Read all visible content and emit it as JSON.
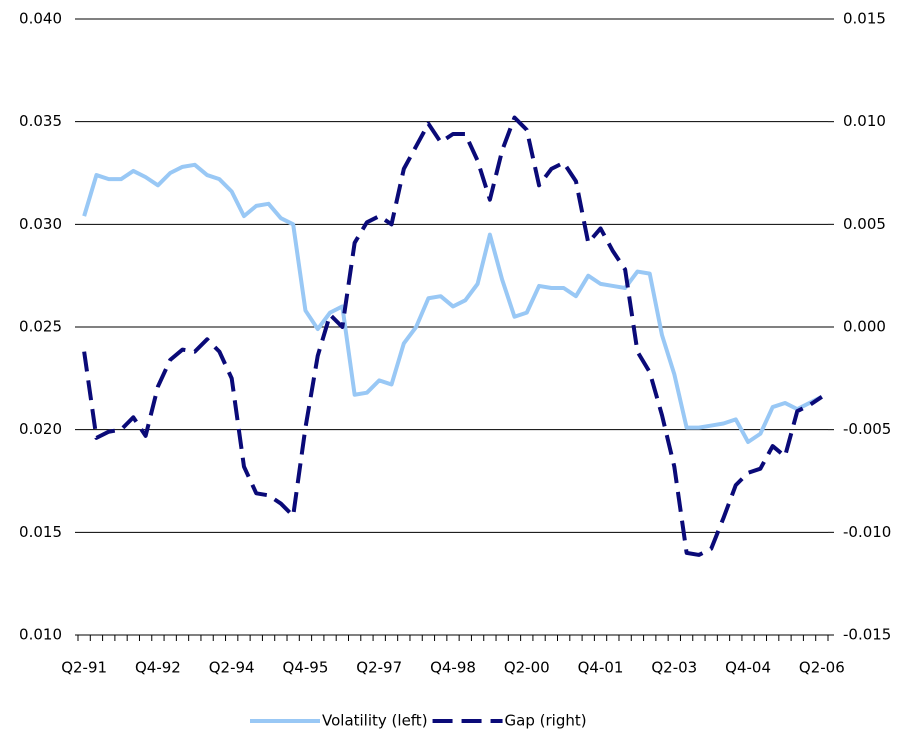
{
  "chart_data": {
    "type": "line",
    "categories": [
      "Q2-91",
      null,
      null,
      null,
      null,
      null,
      "Q4-92",
      null,
      null,
      null,
      null,
      null,
      "Q2-94",
      null,
      null,
      null,
      null,
      null,
      "Q4-95",
      null,
      null,
      null,
      null,
      null,
      "Q2-97",
      null,
      null,
      null,
      null,
      null,
      "Q4-98",
      null,
      null,
      null,
      null,
      null,
      "Q2-00",
      null,
      null,
      null,
      null,
      null,
      "Q4-01",
      null,
      null,
      null,
      null,
      null,
      "Q2-03",
      null,
      null,
      null,
      null,
      null,
      "Q4-04",
      null,
      null,
      null,
      null,
      null,
      "Q2-06"
    ],
    "series": [
      {
        "name": "Volatility (left)",
        "color": "#99c8f5",
        "line_style": "solid",
        "axis": "y",
        "values": [
          0.0304,
          0.0324,
          0.0322,
          0.0322,
          0.0326,
          0.0323,
          0.0319,
          0.0325,
          0.0328,
          0.0329,
          0.0324,
          0.0322,
          0.0316,
          0.0304,
          0.0309,
          0.031,
          0.0303,
          0.03,
          0.0258,
          0.0249,
          0.0257,
          0.026,
          0.0217,
          0.0218,
          0.0224,
          0.0222,
          0.0242,
          0.025,
          0.0264,
          0.0265,
          0.026,
          0.0263,
          0.0271,
          0.0295,
          0.0273,
          0.0255,
          0.0257,
          0.027,
          0.0269,
          0.0269,
          0.0265,
          0.0275,
          0.0271,
          0.027,
          0.0269,
          0.0277,
          0.0276,
          0.0246,
          0.0227,
          0.0201,
          0.0201,
          0.0202,
          0.0203,
          0.0205,
          0.0194,
          0.0198,
          0.0211,
          0.0213,
          0.021,
          0.0213,
          0.0216
        ]
      },
      {
        "name": "Gap (right)",
        "color": "#0a0a78",
        "line_style": "dashed",
        "axis": "y2",
        "values": [
          -0.0012,
          -0.0054,
          -0.0051,
          -0.005,
          -0.0044,
          -0.0053,
          -0.0029,
          -0.0016,
          -0.0011,
          -0.0012,
          -0.0006,
          -0.0012,
          -0.0025,
          -0.0068,
          -0.0081,
          -0.0082,
          -0.0086,
          -0.0092,
          -0.0049,
          -0.0014,
          0.0006,
          0.0,
          0.0041,
          0.0051,
          0.0054,
          0.005,
          0.0077,
          0.0088,
          0.0099,
          0.009,
          0.0094,
          0.0094,
          0.0081,
          0.0062,
          0.0086,
          0.0102,
          0.0096,
          0.0069,
          0.0077,
          0.008,
          0.0071,
          0.0041,
          0.0048,
          0.0037,
          0.0028,
          -0.0012,
          -0.0022,
          -0.0043,
          -0.0068,
          -0.011,
          -0.0111,
          -0.0108,
          -0.0093,
          -0.0077,
          -0.0071,
          -0.0069,
          -0.0058,
          -0.0063,
          -0.0041,
          -0.0038,
          -0.0034
        ]
      }
    ],
    "ylim": [
      0.01,
      0.04
    ],
    "yticks": [
      {
        "value": 0.01,
        "label": "0.010"
      },
      {
        "value": 0.015,
        "label": "0.015"
      },
      {
        "value": 0.02,
        "label": "0.020"
      },
      {
        "value": 0.025,
        "label": "0.025"
      },
      {
        "value": 0.03,
        "label": "0.030"
      },
      {
        "value": 0.035,
        "label": "0.035"
      },
      {
        "value": 0.04,
        "label": "0.040"
      }
    ],
    "y2lim": [
      -0.015,
      0.015
    ],
    "y2ticks": [
      {
        "value": -0.015,
        "label": "-0.015"
      },
      {
        "value": -0.01,
        "label": "-0.010"
      },
      {
        "value": -0.005,
        "label": "-0.005"
      },
      {
        "value": 0,
        "label": "0.000"
      },
      {
        "value": 0.005,
        "label": "0.005"
      },
      {
        "value": 0.01,
        "label": "0.010"
      },
      {
        "value": 0.015,
        "label": "0.015"
      }
    ],
    "grid": true,
    "legend": "bottom"
  }
}
